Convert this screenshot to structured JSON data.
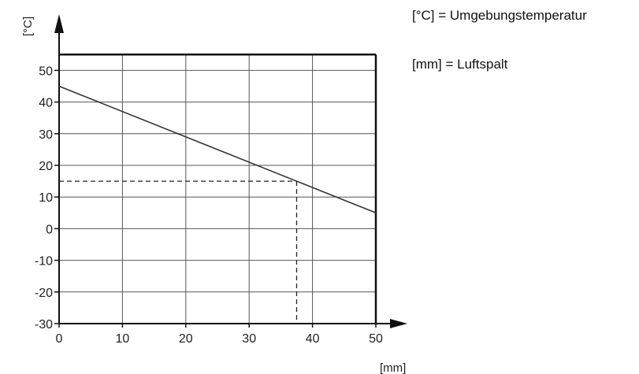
{
  "chart_data": {
    "type": "line",
    "x_axis": {
      "label": "[mm]",
      "range": [
        0,
        50
      ],
      "ticks": [
        0,
        10,
        20,
        30,
        40,
        50
      ]
    },
    "y_axis": {
      "label": "[°C]",
      "range": [
        -30,
        55
      ],
      "ticks": [
        -30,
        -20,
        -10,
        0,
        10,
        20,
        30,
        40,
        50
      ]
    },
    "grid": true,
    "series": [
      {
        "points": [
          [
            0,
            45
          ],
          [
            50,
            5
          ]
        ],
        "color": "#333333"
      }
    ],
    "reference": {
      "x": 37.5,
      "y": 15,
      "style": "dashed"
    },
    "annotations": [
      "[°C] = Umgebungstemperatur",
      "[mm] = Luftspalt"
    ]
  }
}
